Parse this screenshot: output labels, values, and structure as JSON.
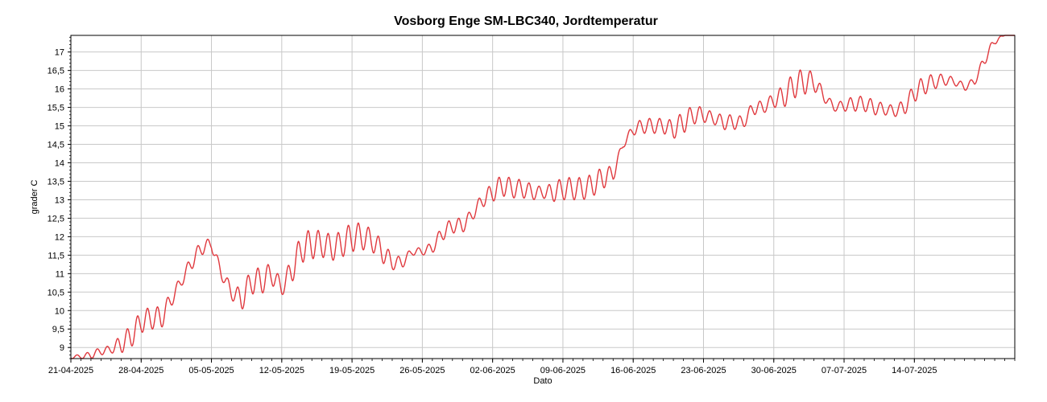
{
  "chart_data": {
    "type": "line",
    "title": "Vosborg Enge SM-LBC340, Jordtemperatur",
    "xlabel": "Dato",
    "ylabel": "grader C",
    "grid": true,
    "legend": "none",
    "color": "#e0393e",
    "xlim": [
      "2025-04-21",
      "2025-07-24"
    ],
    "ylim": [
      8.7,
      17.45
    ],
    "x_ticks": [
      "21-04-2025",
      "28-04-2025",
      "05-05-2025",
      "12-05-2025",
      "19-05-2025",
      "26-05-2025",
      "02-06-2025",
      "09-06-2025",
      "16-06-2025",
      "23-06-2025",
      "30-06-2025",
      "07-07-2025",
      "14-07-2025"
    ],
    "y_ticks": [
      "9",
      "9,5",
      "10",
      "10,5",
      "11",
      "11,5",
      "12",
      "12,5",
      "13",
      "13,5",
      "14",
      "14,5",
      "15",
      "15,5",
      "16",
      "16,5",
      "17"
    ],
    "series": [
      {
        "x": [
          "2025-04-21",
          "2025-04-22",
          "2025-04-23",
          "2025-04-24",
          "2025-04-25",
          "2025-04-26",
          "2025-04-27",
          "2025-04-28",
          "2025-04-29",
          "2025-04-30",
          "2025-05-01",
          "2025-05-02",
          "2025-05-03",
          "2025-05-04",
          "2025-05-05",
          "2025-05-06",
          "2025-05-07",
          "2025-05-08",
          "2025-05-09",
          "2025-05-10",
          "2025-05-11",
          "2025-05-12",
          "2025-05-13",
          "2025-05-14",
          "2025-05-15",
          "2025-05-16",
          "2025-05-17",
          "2025-05-18",
          "2025-05-19",
          "2025-05-20",
          "2025-05-21",
          "2025-05-22",
          "2025-05-23",
          "2025-05-24",
          "2025-05-25",
          "2025-05-26",
          "2025-05-27",
          "2025-05-28",
          "2025-05-29",
          "2025-05-30",
          "2025-05-31",
          "2025-06-01",
          "2025-06-02",
          "2025-06-03",
          "2025-06-04",
          "2025-06-05",
          "2025-06-06",
          "2025-06-07",
          "2025-06-08",
          "2025-06-09",
          "2025-06-10",
          "2025-06-11",
          "2025-06-12",
          "2025-06-13",
          "2025-06-14",
          "2025-06-15",
          "2025-06-16",
          "2025-06-17",
          "2025-06-18",
          "2025-06-19",
          "2025-06-20",
          "2025-06-21",
          "2025-06-22",
          "2025-06-23",
          "2025-06-24",
          "2025-06-25",
          "2025-06-26",
          "2025-06-27",
          "2025-06-28",
          "2025-06-29",
          "2025-06-30",
          "2025-07-01",
          "2025-07-02",
          "2025-07-03",
          "2025-07-04",
          "2025-07-05",
          "2025-07-06",
          "2025-07-07",
          "2025-07-08",
          "2025-07-09",
          "2025-07-10",
          "2025-07-11",
          "2025-07-12",
          "2025-07-13",
          "2025-07-14",
          "2025-07-15",
          "2025-07-16",
          "2025-07-17",
          "2025-07-18",
          "2025-07-19",
          "2025-07-20",
          "2025-07-21",
          "2025-07-22",
          "2025-07-23",
          "2025-07-24"
        ],
        "mean": [
          8.75,
          8.75,
          8.8,
          8.9,
          8.95,
          9.1,
          9.3,
          9.7,
          9.8,
          9.8,
          10.3,
          10.8,
          11.3,
          11.7,
          11.8,
          11.0,
          10.5,
          10.3,
          10.8,
          10.8,
          11.0,
          10.6,
          11.1,
          11.7,
          11.8,
          11.8,
          11.7,
          11.8,
          12.0,
          12.0,
          11.9,
          11.6,
          11.3,
          11.3,
          11.6,
          11.6,
          11.7,
          12.1,
          12.3,
          12.3,
          12.6,
          13.0,
          13.2,
          13.4,
          13.3,
          13.3,
          13.2,
          13.2,
          13.2,
          13.3,
          13.3,
          13.3,
          13.4,
          13.6,
          13.7,
          14.5,
          14.9,
          15.0,
          15.0,
          15.0,
          14.9,
          15.1,
          15.3,
          15.3,
          15.2,
          15.1,
          15.1,
          15.1,
          15.5,
          15.5,
          15.7,
          15.8,
          16.1,
          16.2,
          16.2,
          15.8,
          15.5,
          15.55,
          15.6,
          15.6,
          15.5,
          15.45,
          15.4,
          15.5,
          15.9,
          16.1,
          16.2,
          16.25,
          16.2,
          16.05,
          16.2,
          16.8,
          17.3,
          17.45,
          17.45
        ],
        "amplitude": [
          0.05,
          0.05,
          0.1,
          0.1,
          0.1,
          0.25,
          0.3,
          0.3,
          0.3,
          0.3,
          0.2,
          0.15,
          0.2,
          0.2,
          0.15,
          0.15,
          0.2,
          0.3,
          0.35,
          0.35,
          0.3,
          0.2,
          0.35,
          0.4,
          0.4,
          0.35,
          0.35,
          0.35,
          0.4,
          0.35,
          0.3,
          0.3,
          0.2,
          0.15,
          0.1,
          0.1,
          0.15,
          0.2,
          0.2,
          0.2,
          0.15,
          0.2,
          0.25,
          0.3,
          0.25,
          0.25,
          0.2,
          0.15,
          0.25,
          0.3,
          0.3,
          0.3,
          0.3,
          0.3,
          0.2,
          0.1,
          0.15,
          0.2,
          0.2,
          0.2,
          0.25,
          0.3,
          0.25,
          0.2,
          0.15,
          0.2,
          0.2,
          0.15,
          0.2,
          0.15,
          0.2,
          0.3,
          0.35,
          0.35,
          0.25,
          0.15,
          0.1,
          0.15,
          0.2,
          0.2,
          0.2,
          0.15,
          0.15,
          0.2,
          0.25,
          0.25,
          0.2,
          0.15,
          0.1,
          0.1,
          0.1,
          0.15,
          0.1,
          0.0,
          0.0
        ]
      }
    ]
  }
}
